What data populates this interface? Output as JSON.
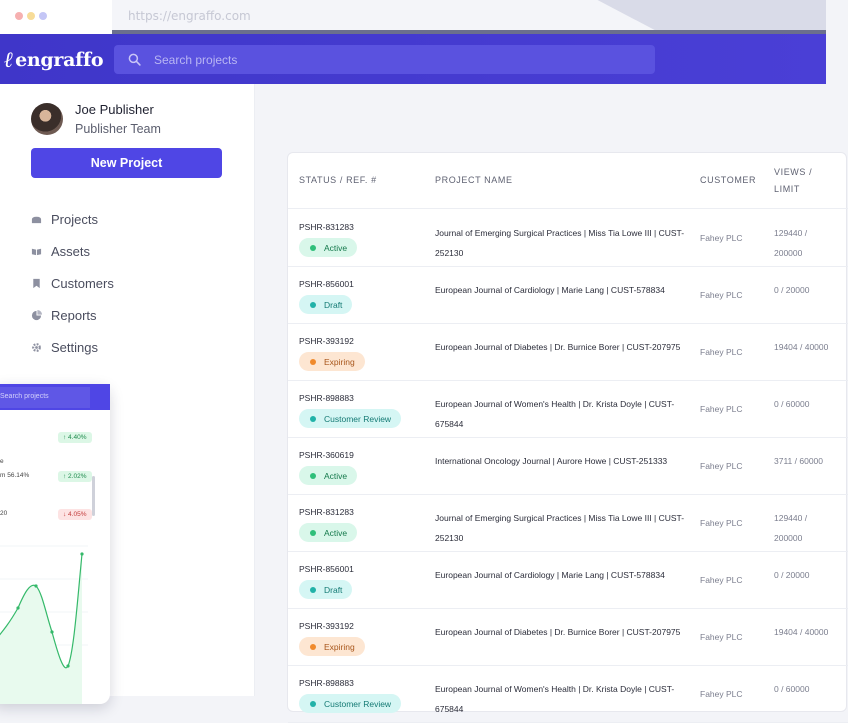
{
  "browser": {
    "url": "https://engraffo.com"
  },
  "app": {
    "logo_text": "engraffo"
  },
  "search": {
    "placeholder": "Search projects"
  },
  "user": {
    "name": "Joe Publisher",
    "team": "Publisher Team"
  },
  "sidebar": {
    "new_project_label": "New Project",
    "nav": [
      {
        "label": "Projects",
        "icon": "projects-icon"
      },
      {
        "label": "Assets",
        "icon": "assets-icon"
      },
      {
        "label": "Customers",
        "icon": "customers-icon"
      },
      {
        "label": "Reports",
        "icon": "reports-icon"
      },
      {
        "label": "Settings",
        "icon": "gear-icon"
      }
    ]
  },
  "mockup": {
    "search_placeholder": "Search projects",
    "rows": [
      {
        "text": "",
        "badge": "↑ 4.40%",
        "trend": "up"
      },
      {
        "text": "e",
        "text2": "m 56.14%",
        "badge": "↑ 2.02%",
        "trend": "up"
      },
      {
        "text": "20",
        "badge": "↓ 4.05%",
        "trend": "down"
      }
    ]
  },
  "table": {
    "headers": {
      "status": "STATUS / REF. #",
      "project": "PROJECT NAME",
      "customer": "CUSTOMER",
      "views_line1": "VIEWS /",
      "views_line2": "LIMIT"
    },
    "rows": [
      {
        "ref": "PSHR-831283",
        "status": "Active",
        "kind": "active",
        "project": "Journal of Emerging Surgical Practices | Miss Tia Lowe III | CUST-252130",
        "customer": "Fahey PLC",
        "views": "129440 / 200000"
      },
      {
        "ref": "PSHR-856001",
        "status": "Draft",
        "kind": "draft",
        "project": "European Journal of Cardiology | Marie Lang | CUST-578834",
        "customer": "Fahey PLC",
        "views": "0 / 20000"
      },
      {
        "ref": "PSHR-393192",
        "status": "Expiring",
        "kind": "expiring",
        "project": "European Journal of Diabetes | Dr. Burnice Borer | CUST-207975",
        "customer": "Fahey PLC",
        "views": "19404 / 40000"
      },
      {
        "ref": "PSHR-898883",
        "status": "Customer Review",
        "kind": "review",
        "project": "European Journal of Women's Health | Dr. Krista Doyle | CUST-675844",
        "customer": "Fahey PLC",
        "views": "0 / 60000"
      },
      {
        "ref": "PSHR-360619",
        "status": "Active",
        "kind": "active",
        "project": "International Oncology Journal | Aurore Howe | CUST-251333",
        "customer": "Fahey PLC",
        "views": "3711 / 60000"
      },
      {
        "ref": "PSHR-831283",
        "status": "Active",
        "kind": "active",
        "project": "Journal of Emerging Surgical Practices | Miss Tia Lowe III | CUST-252130",
        "customer": "Fahey PLC",
        "views": "129440 / 200000"
      },
      {
        "ref": "PSHR-856001",
        "status": "Draft",
        "kind": "draft",
        "project": "European Journal of Cardiology | Marie Lang | CUST-578834",
        "customer": "Fahey PLC",
        "views": "0 / 20000"
      },
      {
        "ref": "PSHR-393192",
        "status": "Expiring",
        "kind": "expiring",
        "project": "European Journal of Diabetes | Dr. Burnice Borer | CUST-207975",
        "customer": "Fahey PLC",
        "views": "19404 / 40000"
      },
      {
        "ref": "PSHR-898883",
        "status": "Customer Review",
        "kind": "review",
        "project": "European Journal of Women's Health | Dr. Krista Doyle | CUST-675844",
        "customer": "Fahey PLC",
        "views": "0 / 60000"
      }
    ]
  },
  "colors": {
    "brand": "#4f46e5",
    "header": "#4338ca",
    "active": "#2fbf7a",
    "draft": "#21b2a8",
    "expiring": "#f08a2c"
  }
}
